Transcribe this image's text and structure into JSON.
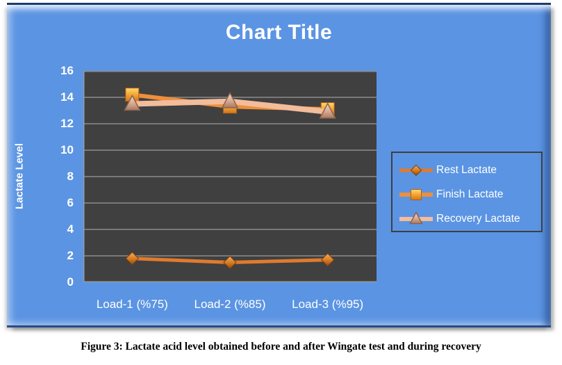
{
  "caption": "Figure 3: Lactate acid level obtained before and after Wingate test and during recovery",
  "chart_data": {
    "type": "line",
    "title": "Chart Title",
    "xlabel": "",
    "ylabel": "Lactate Level",
    "ylim": [
      0,
      16
    ],
    "ytick_step": 2,
    "grid": true,
    "legend_position": "right",
    "categories": [
      "Load-1 (%75)",
      "Load-2 (%85)",
      "Load-3 (%95)"
    ],
    "series": [
      {
        "name": "Rest Lactate",
        "marker": "diamond",
        "values": [
          1.8,
          1.5,
          1.7
        ],
        "line_color": "#E17A2D"
      },
      {
        "name": "Finish Lactate",
        "marker": "square",
        "values": [
          14.2,
          13.3,
          13.1
        ],
        "line_color": "#ED8F3B"
      },
      {
        "name": "Recovery Lactate",
        "marker": "triangle",
        "values": [
          13.5,
          13.7,
          12.9
        ],
        "line_color": "#F3BC9B"
      }
    ],
    "colors": {
      "chart_background": "#5B94E3",
      "plot_background": "#404040",
      "gridline": "#8C8C8C",
      "axis_line": "#9A9A9A",
      "text": "#FFFFFF",
      "legend_border": "#3F3F3F"
    }
  }
}
